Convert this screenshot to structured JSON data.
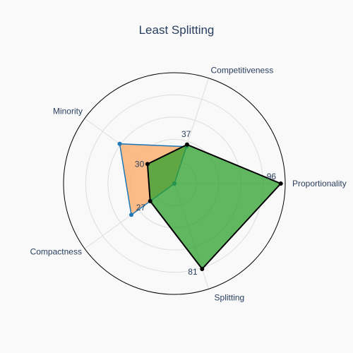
{
  "chart_data": {
    "type": "radar",
    "title": "Least Splitting",
    "axes": [
      "Proportionality",
      "Competitiveness",
      "Minority",
      "Compactness",
      "Splitting"
    ],
    "r_range": [
      0,
      100
    ],
    "grid": true,
    "series": [
      {
        "values": [
          0,
          35,
          61,
          48,
          0
        ],
        "color": "#1f77b4",
        "fill": "#fdb274"
      },
      {
        "values": [
          0,
          0,
          0,
          0,
          0
        ],
        "color": "#1f77b4",
        "fill": "#ff7f0e"
      },
      {
        "values": [
          96,
          37,
          30,
          27,
          81
        ],
        "color": "#000000",
        "fill": "#2ca02c"
      }
    ],
    "data_labels": [
      {
        "axis": "Proportionality",
        "text": "96"
      },
      {
        "axis": "Competitiveness",
        "text": "37"
      },
      {
        "axis": "Minority",
        "text": "30"
      },
      {
        "axis": "Compactness",
        "text": "27"
      },
      {
        "axis": "Splitting",
        "text": "81"
      }
    ]
  }
}
